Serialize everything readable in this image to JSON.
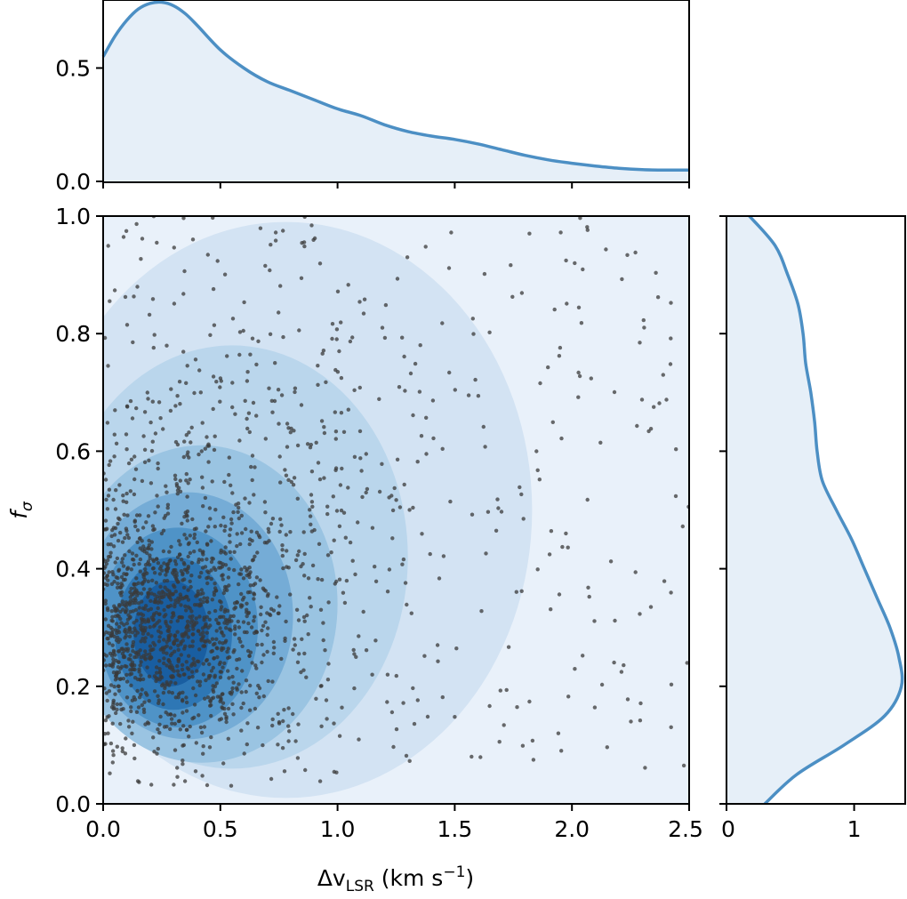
{
  "chart_data": [
    {
      "panel": "joint",
      "type": "scatter",
      "xlabel_main": "Δv",
      "xlabel_sub": "LSR",
      "xlabel_unit_prefix": " (km s",
      "xlabel_unit_exp": "−1",
      "xlabel_unit_suffix": ")",
      "ylabel_main": "f",
      "ylabel_sub": "σ",
      "xlim": [
        0.0,
        2.5
      ],
      "ylim": [
        0.0,
        1.0
      ],
      "x_ticks": [
        "0.0",
        "0.5",
        "1.0",
        "1.5",
        "2.0",
        "2.5"
      ],
      "y_ticks": [
        "0.0",
        "0.2",
        "0.4",
        "0.6",
        "0.8",
        "1.0"
      ],
      "point_color": "#3a3a3a",
      "kde_peak": {
        "x": 0.3,
        "y": 0.28
      },
      "n_points_approx": 1900
    },
    {
      "panel": "top-marginal",
      "type": "area",
      "description_axis": "x",
      "xlim": [
        0.0,
        2.5
      ],
      "ylim": [
        0.0,
        0.8
      ],
      "y_ticks": [
        "0.0",
        "0.5"
      ],
      "x": [
        0.0,
        0.05,
        0.1,
        0.15,
        0.2,
        0.25,
        0.3,
        0.35,
        0.4,
        0.5,
        0.6,
        0.7,
        0.8,
        0.9,
        1.0,
        1.1,
        1.2,
        1.3,
        1.4,
        1.5,
        1.6,
        1.7,
        1.8,
        1.9,
        2.0,
        2.1,
        2.2,
        2.3,
        2.4,
        2.5
      ],
      "y": [
        0.55,
        0.64,
        0.71,
        0.76,
        0.785,
        0.79,
        0.775,
        0.74,
        0.69,
        0.58,
        0.5,
        0.44,
        0.4,
        0.36,
        0.32,
        0.29,
        0.25,
        0.22,
        0.2,
        0.185,
        0.165,
        0.14,
        0.115,
        0.095,
        0.08,
        0.068,
        0.058,
        0.052,
        0.05,
        0.05
      ]
    },
    {
      "panel": "right-marginal",
      "type": "area",
      "description_axis": "y",
      "ylim": [
        0.0,
        1.0
      ],
      "xlim": [
        0.0,
        1.4
      ],
      "x_ticks": [
        "0",
        "1"
      ],
      "y": [
        0.0,
        0.05,
        0.1,
        0.15,
        0.2,
        0.25,
        0.3,
        0.35,
        0.4,
        0.45,
        0.5,
        0.55,
        0.6,
        0.65,
        0.7,
        0.75,
        0.8,
        0.85,
        0.9,
        0.95,
        1.0
      ],
      "density": [
        0.3,
        0.55,
        0.92,
        1.24,
        1.37,
        1.35,
        1.28,
        1.18,
        1.08,
        0.98,
        0.86,
        0.75,
        0.71,
        0.69,
        0.66,
        0.62,
        0.6,
        0.56,
        0.48,
        0.38,
        0.18
      ]
    }
  ],
  "colors": {
    "line": "#4c8fc4",
    "fill_light": "#e6eff8",
    "contour_levels": [
      "#e9f1fa",
      "#d3e3f3",
      "#bad6ec",
      "#9ac4e2",
      "#75acd6",
      "#4f93c7",
      "#2e77b5",
      "#195ea1"
    ]
  }
}
